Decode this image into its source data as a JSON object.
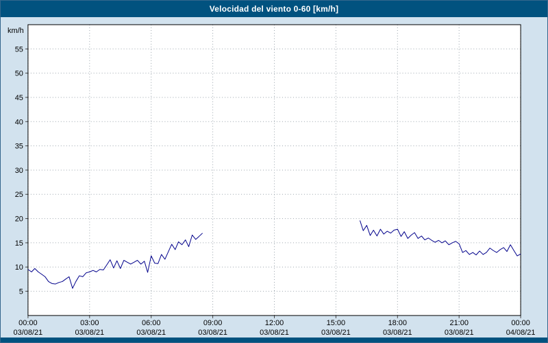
{
  "header": {
    "title": "Velocidad del viento 0-60 [km/h]"
  },
  "colors": {
    "title_bar_bg": "#01527f",
    "title_bar_fg": "#ffffff",
    "page_bg": "#d2e2ee",
    "plot_bg": "#ffffff",
    "plot_border": "#000000",
    "grid": "#9aa4ac",
    "axis_tick": "#444444",
    "tick_text": "#000000",
    "line": "#00008b"
  },
  "chart_data": {
    "type": "line",
    "title": "Velocidad del viento 0-60 [km/h]",
    "xlabel": "",
    "ylabel": "km/h",
    "ylim": [
      0,
      60
    ],
    "xlim_hours": [
      0,
      24
    ],
    "grid": "dotted",
    "legend_position": "none",
    "y_ticks": [
      5,
      10,
      15,
      20,
      25,
      30,
      35,
      40,
      45,
      50,
      55
    ],
    "x_ticks": [
      {
        "hour": 0,
        "time": "00:00",
        "date": "03/08/21"
      },
      {
        "hour": 3,
        "time": "03:00",
        "date": "03/08/21"
      },
      {
        "hour": 6,
        "time": "06:00",
        "date": "03/08/21"
      },
      {
        "hour": 9,
        "time": "09:00",
        "date": "03/08/21"
      },
      {
        "hour": 12,
        "time": "12:00",
        "date": "03/08/21"
      },
      {
        "hour": 15,
        "time": "15:00",
        "date": "03/08/21"
      },
      {
        "hour": 18,
        "time": "18:00",
        "date": "03/08/21"
      },
      {
        "hour": 21,
        "time": "21:00",
        "date": "03/08/21"
      },
      {
        "hour": 24,
        "time": "00:00",
        "date": "04/08/21"
      }
    ],
    "series": [
      {
        "name": "Velocidad del viento",
        "color": "#00008b",
        "segments": [
          {
            "x": [
              0,
              0.17,
              0.33,
              0.5,
              0.67,
              0.83,
              1,
              1.17,
              1.33,
              1.5,
              1.67,
              1.83,
              2,
              2.17,
              2.33,
              2.5,
              2.67,
              2.83,
              3,
              3.17,
              3.33,
              3.5,
              3.67,
              3.83,
              4,
              4.17,
              4.33,
              4.5,
              4.67,
              4.83,
              5,
              5.17,
              5.33,
              5.5,
              5.67,
              5.83,
              6,
              6.17,
              6.33,
              6.5,
              6.67,
              6.83,
              7,
              7.17,
              7.33,
              7.5,
              7.67,
              7.83,
              8,
              8.17,
              8.33,
              8.5
            ],
            "y": [
              9.5,
              9.0,
              9.7,
              9.0,
              8.5,
              8.0,
              7.0,
              6.6,
              6.5,
              6.8,
              7.0,
              7.5,
              8.0,
              5.6,
              7.0,
              8.2,
              8.0,
              8.8,
              9.0,
              9.3,
              9.0,
              9.5,
              9.4,
              10.4,
              11.5,
              9.8,
              11.3,
              9.7,
              11.4,
              11.0,
              10.6,
              11.0,
              11.4,
              10.6,
              11.2,
              8.9,
              12.3,
              10.8,
              10.7,
              12.6,
              11.6,
              13.1,
              14.7,
              13.6,
              15.2,
              14.6,
              15.6,
              14.2,
              16.6,
              15.7,
              16.3,
              17.0
            ]
          },
          {
            "x": [
              16.17,
              16.33,
              16.5,
              16.67,
              16.83,
              17,
              17.17,
              17.33,
              17.5,
              17.67,
              17.83,
              18,
              18.17,
              18.33,
              18.5,
              18.67,
              18.83,
              19,
              19.17,
              19.33,
              19.5,
              19.67,
              19.83,
              20,
              20.17,
              20.33,
              20.5,
              20.67,
              20.83,
              21,
              21.17,
              21.33,
              21.5,
              21.67,
              21.83,
              22,
              22.17,
              22.33,
              22.5,
              22.67,
              22.83,
              23,
              23.17,
              23.33,
              23.5,
              23.67,
              23.83,
              24
            ],
            "y": [
              19.6,
              17.5,
              18.6,
              16.5,
              17.6,
              16.4,
              17.8,
              16.8,
              17.4,
              17.0,
              17.6,
              17.8,
              16.3,
              17.3,
              15.9,
              16.6,
              17.1,
              15.9,
              16.4,
              15.6,
              16.0,
              15.5,
              15.1,
              15.5,
              15.0,
              15.4,
              14.6,
              15.0,
              15.3,
              14.8,
              13.0,
              13.4,
              12.6,
              13.0,
              12.5,
              13.3,
              12.6,
              13.0,
              13.9,
              13.4,
              13.0,
              13.6,
              14.0,
              13.2,
              14.6,
              13.4,
              12.3,
              12.7
            ]
          }
        ]
      }
    ]
  }
}
